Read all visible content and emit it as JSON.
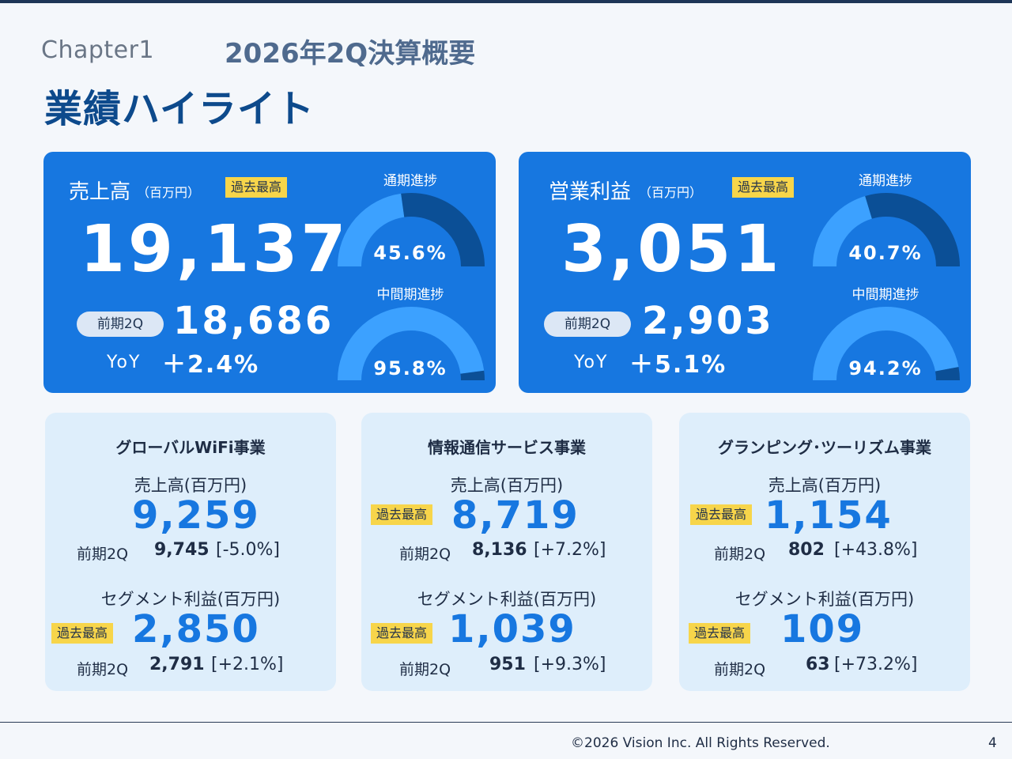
{
  "header": {
    "chapter": "Chapter1",
    "subtitle": "2026年2Q決算概要",
    "title": "業績ハイライト"
  },
  "kpis": {
    "sales": {
      "label": "売上高",
      "unit": "（百万円）",
      "badge": "過去最高",
      "value": "19,137",
      "prev_label": "前期2Q",
      "prev_value": "18,686",
      "yoy_label": "YoY",
      "yoy_value": "＋2.4%",
      "gauge_full_title": "通期進捗",
      "gauge_full_pct": "45.6%",
      "gauge_full_value": 0.456,
      "gauge_half_title": "中間期進捗",
      "gauge_half_pct": "95.8%",
      "gauge_half_value": 0.958
    },
    "profit": {
      "label": "営業利益",
      "unit": "（百万円）",
      "badge": "過去最高",
      "value": "3,051",
      "prev_label": "前期2Q",
      "prev_value": "2,903",
      "yoy_label": "YoY",
      "yoy_value": "＋5.1%",
      "gauge_full_title": "通期進捗",
      "gauge_full_pct": "40.7%",
      "gauge_full_value": 0.407,
      "gauge_half_title": "中間期進捗",
      "gauge_half_pct": "94.2%",
      "gauge_half_value": 0.942
    }
  },
  "segments": [
    {
      "name": "グローバルWiFi事業",
      "sales_label": "売上高(百万円)",
      "sales_value": "9,259",
      "sales_prev_label": "前期2Q",
      "sales_prev_value": "9,745",
      "sales_prev_rate": "[-5.0%]",
      "profit_label": "セグメント利益(百万円)",
      "profit_badge": "過去最高",
      "profit_value": "2,850",
      "profit_prev_label": "前期2Q",
      "profit_prev_value": "2,791",
      "profit_prev_rate": "[+2.1%]"
    },
    {
      "name": "情報通信サービス事業",
      "sales_label": "売上高(百万円)",
      "sales_badge": "過去最高",
      "sales_value": "8,719",
      "sales_prev_label": "前期2Q",
      "sales_prev_value": "8,136",
      "sales_prev_rate": "[+7.2%]",
      "profit_label": "セグメント利益(百万円)",
      "profit_badge": "過去最高",
      "profit_value": "1,039",
      "profit_prev_label": "前期2Q",
      "profit_prev_value": "951",
      "profit_prev_rate": "[+9.3%]"
    },
    {
      "name": "グランピング･ツーリズム事業",
      "sales_label": "売上高(百万円)",
      "sales_badge": "過去最高",
      "sales_value": "1,154",
      "sales_prev_label": "前期2Q",
      "sales_prev_value": "802",
      "sales_prev_rate": "[+43.8%]",
      "profit_label": "セグメント利益(百万円)",
      "profit_badge": "過去最高",
      "profit_value": "109",
      "profit_prev_label": "前期2Q",
      "profit_prev_value": "63",
      "profit_prev_rate": "[+73.2%]"
    }
  ],
  "footer": {
    "copyright": "©2026 Vision Inc. All Rights Reserved.",
    "page": "4"
  },
  "colors": {
    "kpi_bg": "#1777e0",
    "gauge_remaining": "#3ca1ff",
    "gauge_progress": "#0b4f96",
    "badge": "#f7d54a",
    "segment_bg": "#deeefb",
    "accent_value": "#1777e0",
    "title": "#0d4a8c"
  }
}
